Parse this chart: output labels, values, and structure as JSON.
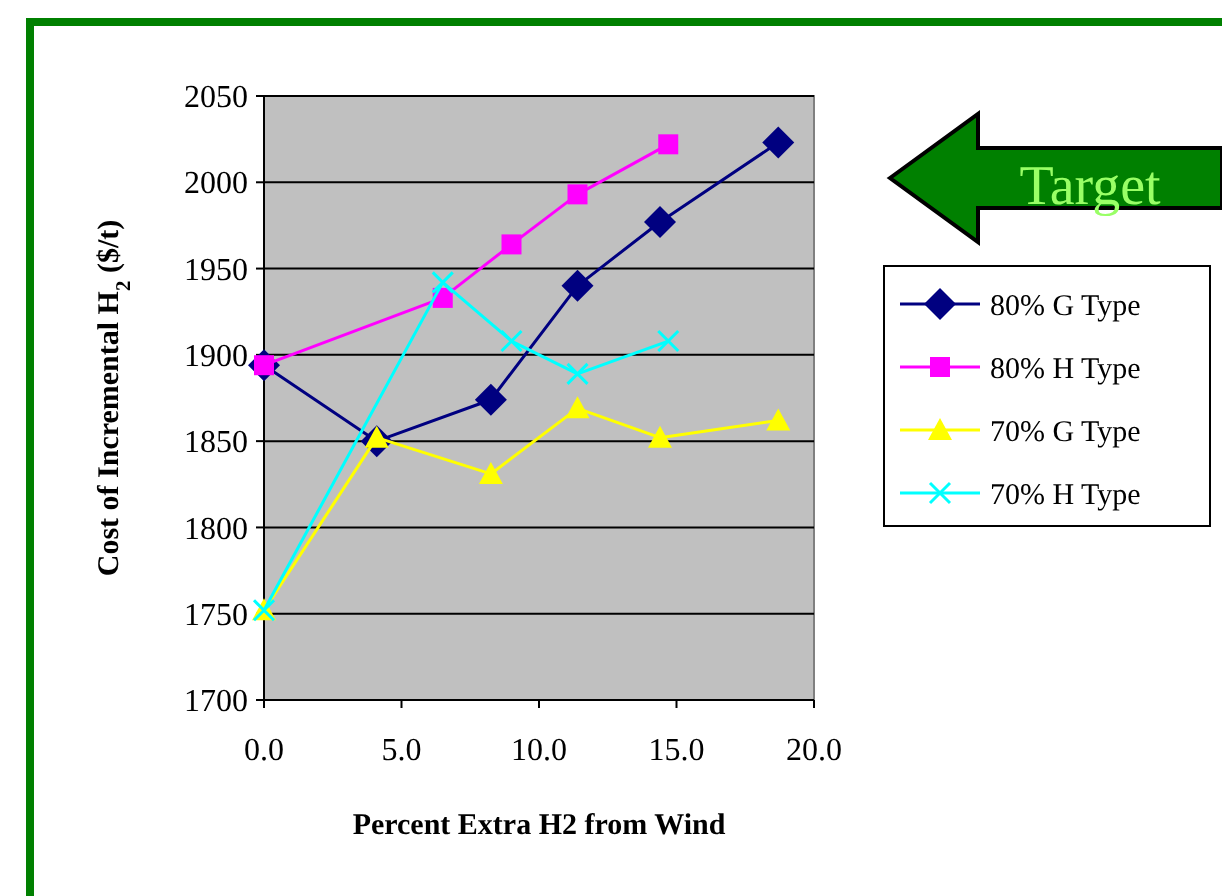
{
  "chart_data": {
    "type": "line",
    "xlabel": "Percent Extra H2 from Wind",
    "ylabel": "Cost of Incremental H$_{2}$ ($/t)",
    "xlim": [
      0,
      20
    ],
    "xticks": [
      {
        "value": 0,
        "label": "0.0"
      },
      {
        "value": 5,
        "label": "5.0"
      },
      {
        "value": 10,
        "label": "10.0"
      },
      {
        "value": 15,
        "label": "15.0"
      },
      {
        "value": 20,
        "label": "20.0"
      }
    ],
    "ylim": [
      1700,
      2050
    ],
    "yticks": [
      1700,
      1750,
      1800,
      1850,
      1900,
      1950,
      2000,
      2050
    ],
    "grid": "y",
    "legend": "right",
    "annotations": [
      "Target"
    ],
    "series": [
      {
        "name": "80% G Type",
        "color": "#000080",
        "marker": "diamond",
        "x": [
          0,
          4.1,
          8.25,
          11.4,
          14.4,
          18.7
        ],
        "values": [
          1894,
          1850,
          1874,
          1940,
          1977,
          2023
        ]
      },
      {
        "name": "80% H Type",
        "color": "#ff00ff",
        "marker": "square",
        "x": [
          0,
          6.5,
          9.0,
          11.4,
          14.7
        ],
        "values": [
          1894,
          1933,
          1964,
          1993,
          2022
        ]
      },
      {
        "name": "70% G Type",
        "color": "#ffff00",
        "marker": "triangle",
        "x": [
          0,
          4.1,
          8.25,
          11.4,
          14.4,
          18.7
        ],
        "values": [
          1752,
          1852,
          1831,
          1869,
          1852,
          1862
        ]
      },
      {
        "name": "70% H Type",
        "color": "#00ffff",
        "marker": "cross",
        "x": [
          0,
          6.5,
          9.0,
          11.4,
          14.7
        ],
        "values": [
          1752,
          1942,
          1908,
          1889,
          1908
        ]
      }
    ]
  }
}
